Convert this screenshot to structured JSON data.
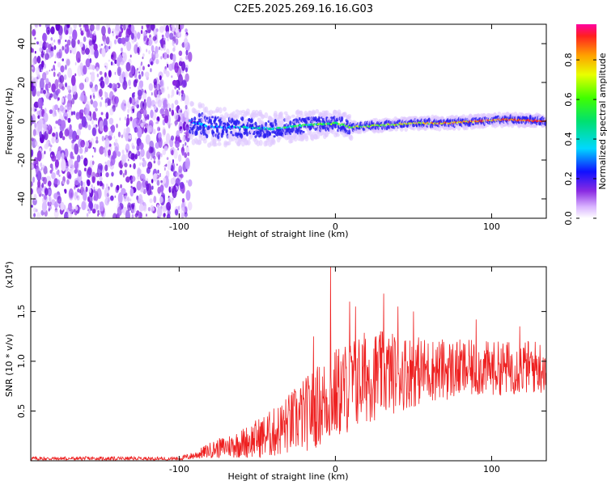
{
  "title": "C2E5.2025.269.16.16.G03",
  "chart_data": [
    {
      "type": "heatmap",
      "name": "spectrogram",
      "xlabel": "Height of straight line (km)",
      "ylabel": "Frequency (Hz)",
      "xlim": [
        -195,
        135
      ],
      "ylim": [
        -50,
        50
      ],
      "x_ticks": [
        -100,
        0,
        100
      ],
      "y_ticks": [
        -40,
        -20,
        0,
        20,
        40
      ],
      "x_tick_labels": [
        "-100",
        "0",
        "100"
      ],
      "y_tick_labels": [
        "-40",
        "-20",
        "0",
        "20",
        "40"
      ],
      "noise_region_x": [
        -195,
        -93
      ],
      "signal_start_x": -93,
      "track_frequency": [
        {
          "x": -93,
          "f": 0
        },
        {
          "x": -80,
          "f": -3
        },
        {
          "x": -60,
          "f": -3
        },
        {
          "x": -40,
          "f": -4
        },
        {
          "x": -20,
          "f": -2
        },
        {
          "x": 0,
          "f": -1
        },
        {
          "x": 10,
          "f": -3
        },
        {
          "x": 30,
          "f": -2
        },
        {
          "x": 50,
          "f": -1
        },
        {
          "x": 70,
          "f": -1
        },
        {
          "x": 90,
          "f": 0
        },
        {
          "x": 110,
          "f": 1
        },
        {
          "x": 135,
          "f": 0
        }
      ],
      "colorbar": {
        "label": "Normalized spectral amplitude",
        "range": [
          0,
          0.98
        ],
        "ticks": [
          0.0,
          0.2,
          0.4,
          0.6,
          0.8
        ],
        "tick_labels": [
          "0.0",
          "0.2",
          "0.4",
          "0.6",
          "0.8"
        ]
      }
    },
    {
      "type": "line",
      "name": "snr",
      "xlabel": "Height of straight line (km)",
      "ylabel": "SNR (10 * v/v)",
      "scale_label": "(x10",
      "scale_exponent": "4",
      "scale_close": ")",
      "xlim": [
        -195,
        135
      ],
      "ylim": [
        0,
        1.95
      ],
      "x_ticks": [
        -100,
        0,
        100
      ],
      "x_tick_labels": [
        "-100",
        "0",
        "100"
      ],
      "y_ticks": [
        0.5,
        1.0,
        1.5
      ],
      "y_tick_labels": [
        "0.5",
        "1.0",
        "1.5"
      ],
      "color": "#ee2020",
      "envelope": [
        {
          "x": -195,
          "base": 0.02,
          "amp": 0.04
        },
        {
          "x": -100,
          "base": 0.02,
          "amp": 0.04
        },
        {
          "x": -90,
          "base": 0.05,
          "amp": 0.08
        },
        {
          "x": -80,
          "base": 0.1,
          "amp": 0.16
        },
        {
          "x": -60,
          "base": 0.16,
          "amp": 0.3
        },
        {
          "x": -40,
          "base": 0.25,
          "amp": 0.5
        },
        {
          "x": -20,
          "base": 0.42,
          "amp": 0.75
        },
        {
          "x": 0,
          "base": 0.62,
          "amp": 0.95
        },
        {
          "x": 20,
          "base": 0.8,
          "amp": 0.95
        },
        {
          "x": 40,
          "base": 0.85,
          "amp": 0.8
        },
        {
          "x": 60,
          "base": 0.88,
          "amp": 0.65
        },
        {
          "x": 100,
          "base": 0.9,
          "amp": 0.55
        },
        {
          "x": 135,
          "base": 0.92,
          "amp": 0.55
        }
      ],
      "peaks": [
        {
          "x": -3,
          "y": 1.95
        },
        {
          "x": 9,
          "y": 1.6
        },
        {
          "x": 31,
          "y": 1.68
        },
        {
          "x": 13,
          "y": 1.55
        },
        {
          "x": 40,
          "y": 1.55
        },
        {
          "x": -14,
          "y": 1.25
        },
        {
          "x": 50,
          "y": 1.5
        },
        {
          "x": 90,
          "y": 1.42
        },
        {
          "x": 118,
          "y": 1.35
        }
      ]
    }
  ]
}
